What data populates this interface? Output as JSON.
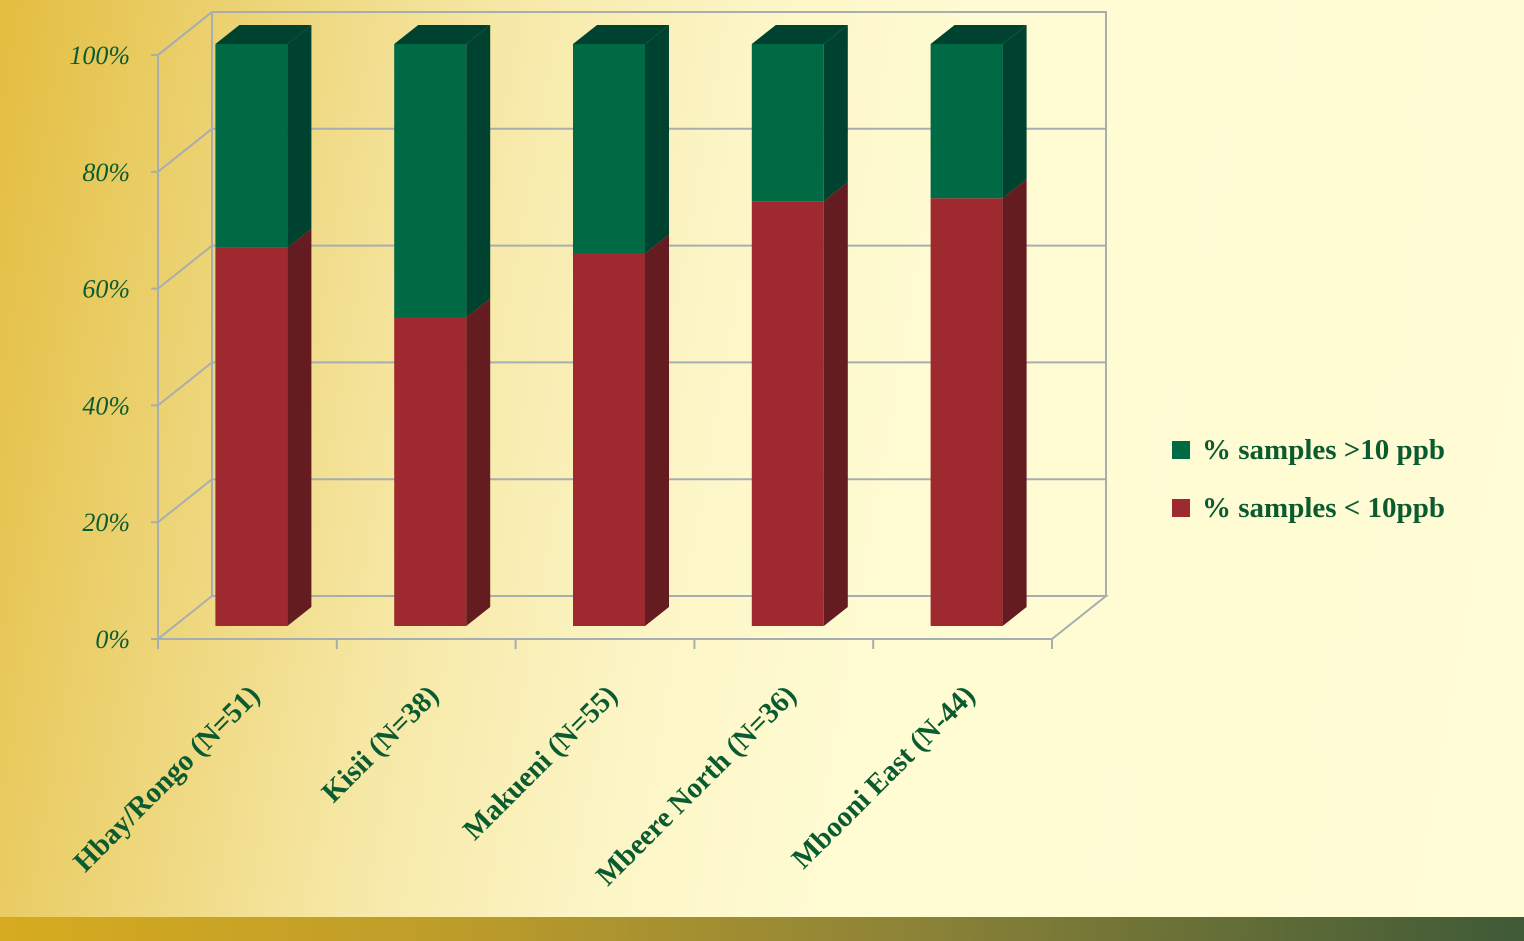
{
  "chart_data": {
    "type": "bar",
    "stacked": true,
    "percent_stacked": true,
    "three_d": true,
    "categories": [
      "Hbay/Rongo (N=51)",
      "Kisii (N=38)",
      "Makueni (N=55)",
      "Mbeere North (N=36)",
      "Mbooni East (N-44)"
    ],
    "series": [
      {
        "name": "% samples < 10ppb",
        "values": [
          65,
          53,
          64,
          73,
          73.5
        ],
        "color": "#9e2a30",
        "side_color": "#641c21"
      },
      {
        "name": "% samples >10 ppb",
        "values": [
          35,
          47,
          36,
          27,
          26.5
        ],
        "color": "#006a45",
        "side_color": "#004230"
      }
    ],
    "yticks": [
      "0%",
      "20%",
      "40%",
      "60%",
      "80%",
      "100%"
    ],
    "ylim": [
      0,
      100
    ],
    "grid": true,
    "legend_position": "right",
    "title": "",
    "xlabel": "",
    "ylabel": ""
  },
  "legend": [
    {
      "label": "% samples >10 ppb",
      "color": "#006a45"
    },
    {
      "label": "% samples < 10ppb",
      "color": "#9e2a30"
    }
  ]
}
